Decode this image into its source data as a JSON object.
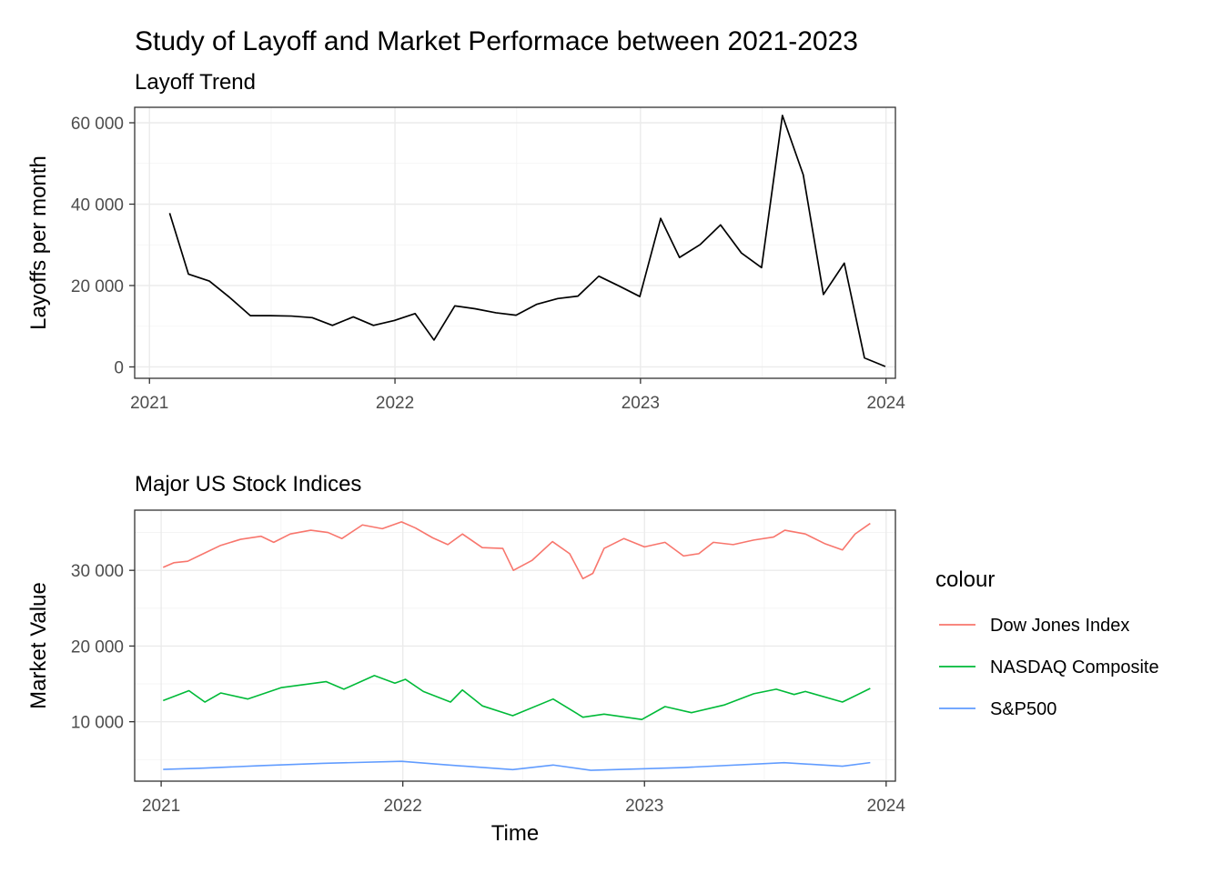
{
  "title": "Study of Layoff and Market Performace between 2021-2023",
  "colors": {
    "layoff_line": "#000000",
    "dow": "#F8766D",
    "nasdaq": "#00BA38",
    "sp500": "#619CFF"
  },
  "chart_data": [
    {
      "type": "line",
      "subtitle": "Layoff Trend",
      "xlabel": "",
      "ylabel": "Layoffs per month",
      "x_ticks": [
        "2021",
        "2022",
        "2023",
        "2024"
      ],
      "y_ticks": [
        "0",
        "20 000",
        "40 000",
        "60 000"
      ],
      "xlim": [
        "2020-12-10",
        "2024-01-15"
      ],
      "ylim": [
        -2800,
        63800
      ],
      "grid": true,
      "series": [
        {
          "color": "#000000",
          "x": [
            "2021-01-31",
            "2021-02-28",
            "2021-03-31",
            "2021-04-30",
            "2021-05-31",
            "2021-06-30",
            "2021-07-31",
            "2021-08-31",
            "2021-09-30",
            "2021-10-31",
            "2021-11-30",
            "2021-12-31",
            "2022-01-31",
            "2022-02-28",
            "2022-03-31",
            "2022-04-30",
            "2022-05-31",
            "2022-06-30",
            "2022-07-31",
            "2022-08-31",
            "2022-09-30",
            "2022-10-31",
            "2022-11-30",
            "2022-12-31",
            "2023-01-31",
            "2023-02-28",
            "2023-03-31",
            "2023-04-30",
            "2023-05-31",
            "2023-06-30",
            "2023-07-31",
            "2023-08-31",
            "2023-09-30",
            "2023-10-31",
            "2023-11-30",
            "2023-12-31"
          ],
          "values": [
            37800,
            22800,
            21100,
            17100,
            12600,
            12600,
            12500,
            12100,
            10200,
            12300,
            10200,
            11400,
            13100,
            6600,
            15000,
            14300,
            13300,
            12700,
            15400,
            16800,
            17400,
            22300,
            19900,
            17300,
            36500,
            26900,
            30100,
            34900,
            28000,
            24400,
            61800,
            47200,
            17800,
            25500,
            2200,
            100
          ]
        }
      ]
    },
    {
      "type": "line",
      "subtitle": "Major US Stock Indices",
      "xlabel": "Time",
      "ylabel": "Market Value",
      "x_ticks": [
        "2021",
        "2022",
        "2023",
        "2024"
      ],
      "y_ticks": [
        "10 000",
        "20 000",
        "30 000"
      ],
      "xlim": [
        "2020-11-22",
        "2024-01-15"
      ],
      "ylim": [
        2150,
        37950
      ],
      "grid": true,
      "legend_title": "colour",
      "legend_position": "right",
      "series": [
        {
          "name": "Dow Jones Index",
          "color": "#F8766D",
          "x": [
            "2021-01-04",
            "2021-01-20",
            "2021-02-10",
            "2021-03-01",
            "2021-04-01",
            "2021-05-01",
            "2021-06-01",
            "2021-06-20",
            "2021-07-15",
            "2021-08-15",
            "2021-09-10",
            "2021-10-01",
            "2021-11-01",
            "2021-12-01",
            "2021-12-30",
            "2022-01-20",
            "2022-02-15",
            "2022-03-10",
            "2022-04-01",
            "2022-05-01",
            "2022-06-01",
            "2022-06-17",
            "2022-07-15",
            "2022-08-15",
            "2022-09-10",
            "2022-09-30",
            "2022-10-15",
            "2022-11-01",
            "2022-12-01",
            "2023-01-01",
            "2023-02-01",
            "2023-03-01",
            "2023-03-24",
            "2023-04-15",
            "2023-05-15",
            "2023-06-15",
            "2023-07-15",
            "2023-08-01",
            "2023-09-01",
            "2023-10-01",
            "2023-10-27",
            "2023-11-15",
            "2023-12-08"
          ],
          "values": [
            30400,
            31000,
            31200,
            32000,
            33300,
            34100,
            34500,
            33700,
            34800,
            35300,
            35000,
            34200,
            36000,
            35500,
            36400,
            35600,
            34300,
            33400,
            34800,
            33000,
            32900,
            30000,
            31300,
            33800,
            32200,
            28900,
            29600,
            32900,
            34200,
            33100,
            33700,
            31900,
            32200,
            33700,
            33400,
            34000,
            34400,
            35300,
            34800,
            33500,
            32700,
            34800,
            36200
          ]
        },
        {
          "name": "NASDAQ Composite",
          "color": "#00BA38",
          "x": [
            "2021-01-04",
            "2021-02-12",
            "2021-03-08",
            "2021-04-01",
            "2021-05-12",
            "2021-07-01",
            "2021-09-07",
            "2021-10-04",
            "2021-11-19",
            "2021-12-20",
            "2022-01-05",
            "2022-02-01",
            "2022-03-14",
            "2022-04-01",
            "2022-05-01",
            "2022-06-16",
            "2022-08-16",
            "2022-09-30",
            "2022-11-01",
            "2022-12-28",
            "2023-02-01",
            "2023-03-13",
            "2023-05-01",
            "2023-06-15",
            "2023-07-19",
            "2023-08-15",
            "2023-09-01",
            "2023-10-27",
            "2023-12-08"
          ],
          "values": [
            12800,
            14100,
            12600,
            13800,
            13000,
            14500,
            15300,
            14300,
            16100,
            15100,
            15600,
            14000,
            12600,
            14200,
            12100,
            10800,
            13000,
            10600,
            11000,
            10300,
            12000,
            11200,
            12200,
            13700,
            14300,
            13600,
            14000,
            12600,
            14400
          ]
        },
        {
          "name": "S&P500",
          "color": "#619CFF",
          "x": [
            "2021-01-04",
            "2021-03-01",
            "2021-06-01",
            "2021-09-01",
            "2021-12-30",
            "2022-03-01",
            "2022-06-16",
            "2022-08-16",
            "2022-10-12",
            "2022-12-28",
            "2023-03-01",
            "2023-07-31",
            "2023-10-27",
            "2023-12-08"
          ],
          "values": [
            3700,
            3850,
            4200,
            4500,
            4770,
            4350,
            3670,
            4280,
            3580,
            3780,
            3950,
            4590,
            4120,
            4600
          ]
        }
      ]
    }
  ]
}
